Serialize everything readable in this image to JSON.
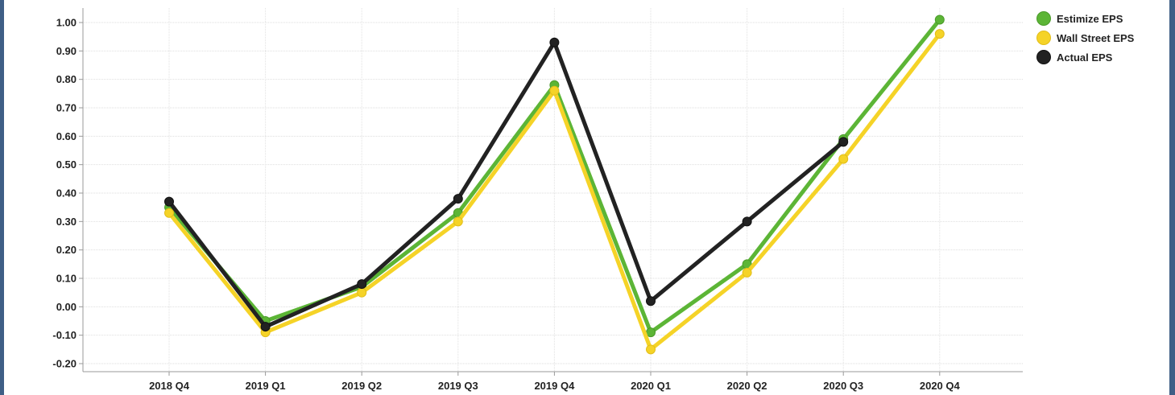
{
  "colors": {
    "estimize": "#5cb536",
    "wallstreet": "#f5d327",
    "actual": "#222222",
    "frame": "#3f5f86"
  },
  "legend": [
    {
      "name": "Estimize EPS",
      "color": "#5cb536"
    },
    {
      "name": "Wall Street EPS",
      "color": "#f5d327"
    },
    {
      "name": "Actual EPS",
      "color": "#222222"
    }
  ],
  "chart_data": {
    "type": "line",
    "categories": [
      "2018 Q4",
      "2019 Q1",
      "2019 Q2",
      "2019 Q3",
      "2019 Q4",
      "2020 Q1",
      "2020 Q2",
      "2020 Q3",
      "2020 Q4"
    ],
    "series": [
      {
        "name": "Estimize EPS",
        "values": [
          0.35,
          -0.05,
          0.07,
          0.33,
          0.78,
          -0.09,
          0.15,
          0.59,
          1.01
        ]
      },
      {
        "name": "Wall Street EPS",
        "values": [
          0.33,
          -0.09,
          0.05,
          0.3,
          0.76,
          -0.15,
          0.12,
          0.52,
          0.96
        ]
      },
      {
        "name": "Actual EPS",
        "values": [
          0.37,
          -0.07,
          0.08,
          0.38,
          0.93,
          0.02,
          0.3,
          0.58,
          null
        ]
      }
    ],
    "yticks": [
      "1.00",
      "0.90",
      "0.80",
      "0.70",
      "0.60",
      "0.50",
      "0.40",
      "0.30",
      "0.20",
      "0.10",
      "0.00",
      "-0.10",
      "-0.20"
    ],
    "ylim": [
      -0.2,
      1.0
    ],
    "grid": true,
    "legend_position": "top-right",
    "title": "",
    "xlabel": "",
    "ylabel": ""
  }
}
